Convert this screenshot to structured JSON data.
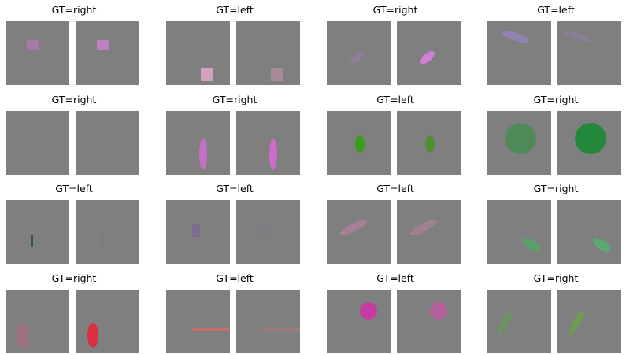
{
  "pairs": [
    {
      "title": "GT=right",
      "shape": "rect",
      "left": {
        "fill": "#a878a8"
      },
      "right": {
        "fill": "#c080c0"
      }
    },
    {
      "title": "GT=left",
      "shape": "rect",
      "left": {
        "fill": "#d4a0c0"
      },
      "right": {
        "fill": "#a88a9a"
      }
    },
    {
      "title": "GT=right",
      "shape": "ellipse",
      "left": {
        "fill": "#8e7e96"
      },
      "right": {
        "fill": "#d27ed6"
      }
    },
    {
      "title": "GT=left",
      "shape": "ellipse",
      "left": {
        "fill": "#9282b2"
      },
      "right": {
        "fill": "#8a8096"
      }
    },
    {
      "title": "GT=right",
      "shape": "none",
      "left": {
        "fill": "#7f7f7f"
      },
      "right": {
        "fill": "#7f7f7f"
      }
    },
    {
      "title": "GT=right",
      "shape": "ellipse",
      "left": {
        "fill": "#c470c4"
      },
      "right": {
        "fill": "#cc6ccc"
      }
    },
    {
      "title": "GT=left",
      "shape": "ellipse",
      "left": {
        "fill": "#36a01c"
      },
      "right": {
        "fill": "#4c9232"
      }
    },
    {
      "title": "GT=right",
      "shape": "circle",
      "left": {
        "fill": "#508a58"
      },
      "right": {
        "fill": "#24883a"
      }
    },
    {
      "title": "GT=left",
      "shape": "line",
      "left": {
        "fill": "#2e5e36"
      },
      "right": {
        "fill": "#6c7a6e"
      }
    },
    {
      "title": "GT=left",
      "shape": "rect",
      "left": {
        "fill": "#7c6c92"
      },
      "right": {
        "fill": "#807a82"
      }
    },
    {
      "title": "GT=left",
      "shape": "ellipse",
      "left": {
        "fill": "#a88096"
      },
      "right": {
        "fill": "#a08092"
      }
    },
    {
      "title": "GT=right",
      "shape": "ellipse",
      "left": {
        "fill": "#5aa06a"
      },
      "right": {
        "fill": "#58aa6e"
      }
    },
    {
      "title": "GT=right",
      "shape": "ellipse",
      "left": {
        "fill": "#a0707e"
      },
      "right": {
        "fill": "#d83040"
      }
    },
    {
      "title": "GT=left",
      "shape": "line",
      "left": {
        "fill": "#c4706c"
      },
      "right": {
        "fill": "#a07a78"
      }
    },
    {
      "title": "GT=left",
      "shape": "circle",
      "left": {
        "fill": "#c63c9e"
      },
      "right": {
        "fill": "#b4609e"
      }
    },
    {
      "title": "GT=right",
      "shape": "ellipse",
      "left": {
        "fill": "#6e9262"
      },
      "right": {
        "fill": "#6e9a56"
      }
    }
  ]
}
